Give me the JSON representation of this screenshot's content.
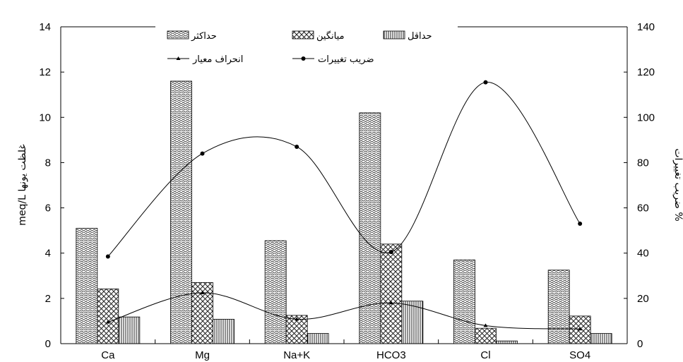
{
  "chart_data": {
    "type": "bar",
    "categories": [
      "Ca",
      "Mg",
      "Na+K",
      "HCO3",
      "Cl",
      "SO4"
    ],
    "series": [
      {
        "name": "حداکثر",
        "kind": "bar",
        "axis": "left",
        "pattern": "waves",
        "values": [
          5.1,
          11.6,
          4.55,
          10.2,
          3.7,
          3.25
        ]
      },
      {
        "name": "میانگین",
        "kind": "bar",
        "axis": "left",
        "pattern": "crosshatch",
        "values": [
          2.42,
          2.7,
          1.25,
          4.4,
          0.68,
          1.22
        ]
      },
      {
        "name": "حداقل",
        "kind": "bar",
        "axis": "left",
        "pattern": "vlines",
        "values": [
          1.18,
          1.08,
          0.45,
          1.88,
          0.12,
          0.45
        ]
      },
      {
        "name": "انحراف معیار",
        "kind": "line",
        "axis": "left",
        "marker": "triangle",
        "values": [
          0.95,
          2.25,
          1.08,
          1.8,
          0.8,
          0.65
        ]
      },
      {
        "name": "ضریب تغییرات",
        "kind": "line",
        "axis": "right",
        "marker": "circle",
        "values": [
          38.5,
          84,
          87,
          40.5,
          115.5,
          53
        ]
      }
    ],
    "ylabel": "meq/L غلظت یونها",
    "y2label": "ضریب تغییرات %",
    "ylim": [
      0,
      14
    ],
    "y2lim": [
      0,
      140
    ],
    "yticks": [
      "0",
      "2",
      "4",
      "6",
      "8",
      "10",
      "12",
      "14"
    ],
    "y2ticks": [
      "0",
      "20",
      "40",
      "60",
      "80",
      "100",
      "120",
      "140"
    ],
    "grid": false,
    "legend_position": "top-center"
  }
}
